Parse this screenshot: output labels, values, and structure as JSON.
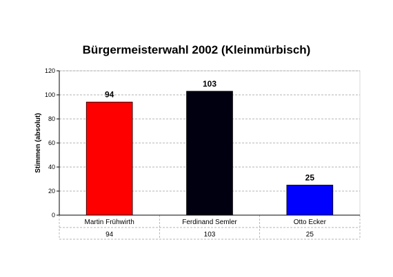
{
  "chart_data": {
    "type": "bar",
    "title": "Bürgermeisterwahl 2002 (Kleinmürbisch)",
    "ylabel": "Stimmen (absolut)",
    "xlabel": "",
    "categories": [
      "Martin Frühwirth",
      "Ferdinand Semler",
      "Otto Ecker"
    ],
    "values": [
      94,
      103,
      25
    ],
    "bar_colors": [
      "#ff0000",
      "#000010",
      "#0000ff"
    ],
    "ylim": [
      0,
      120
    ],
    "yticks": [
      0,
      20,
      40,
      60,
      80,
      100,
      120
    ],
    "grid": true,
    "plot_background": "#ffffff",
    "data_table": true
  }
}
